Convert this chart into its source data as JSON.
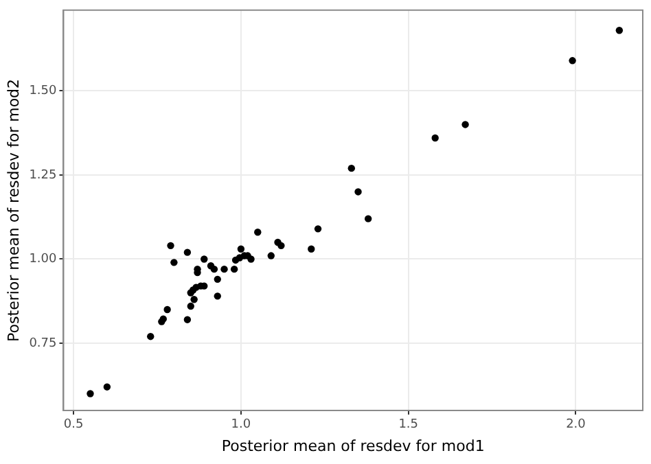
{
  "chart_data": {
    "type": "scatter",
    "xlabel": "Posterior mean of resdev for mod1",
    "ylabel": "Posterior mean of resdev for mod2",
    "x": [
      0.55,
      0.6,
      0.73,
      0.763,
      0.768,
      0.78,
      0.79,
      0.8,
      0.84,
      0.84,
      0.85,
      0.85,
      0.857,
      0.866,
      0.86,
      0.87,
      0.87,
      0.89,
      0.88,
      0.89,
      0.91,
      0.92,
      0.93,
      0.93,
      0.95,
      0.98,
      0.984,
      0.996,
      1.0,
      1.01,
      1.02,
      1.03,
      1.05,
      1.09,
      1.11,
      1.12,
      1.21,
      1.23,
      1.33,
      1.35,
      1.38,
      1.58,
      1.67,
      1.99,
      2.13
    ],
    "series": [
      {
        "color": "#000000",
        "values": [
          0.6,
          0.62,
          0.77,
          0.814,
          0.822,
          0.85,
          1.04,
          0.99,
          1.02,
          0.82,
          0.86,
          0.9,
          0.908,
          0.916,
          0.88,
          0.97,
          0.96,
          1.0,
          0.92,
          0.92,
          0.98,
          0.97,
          0.89,
          0.94,
          0.97,
          0.97,
          0.997,
          1.004,
          1.03,
          1.01,
          1.01,
          1.0,
          1.08,
          1.01,
          1.05,
          1.04,
          1.03,
          1.09,
          1.27,
          1.2,
          1.12,
          1.36,
          1.4,
          1.59,
          1.68
        ]
      }
    ],
    "xlim": [
      0.47,
      2.2
    ],
    "ylim": [
      0.55,
      1.74
    ],
    "xticks": [
      0.5,
      {
        "value": 1,
        "label": "1.0"
      },
      1.5,
      {
        "value": 2,
        "label": "2.0"
      }
    ],
    "yticks": [
      0.75,
      {
        "value": 1,
        "label": "1.00"
      },
      1.25,
      {
        "value": 1.5,
        "label": "1.50"
      }
    ],
    "grid": true,
    "marker": "circle",
    "legend": false
  }
}
